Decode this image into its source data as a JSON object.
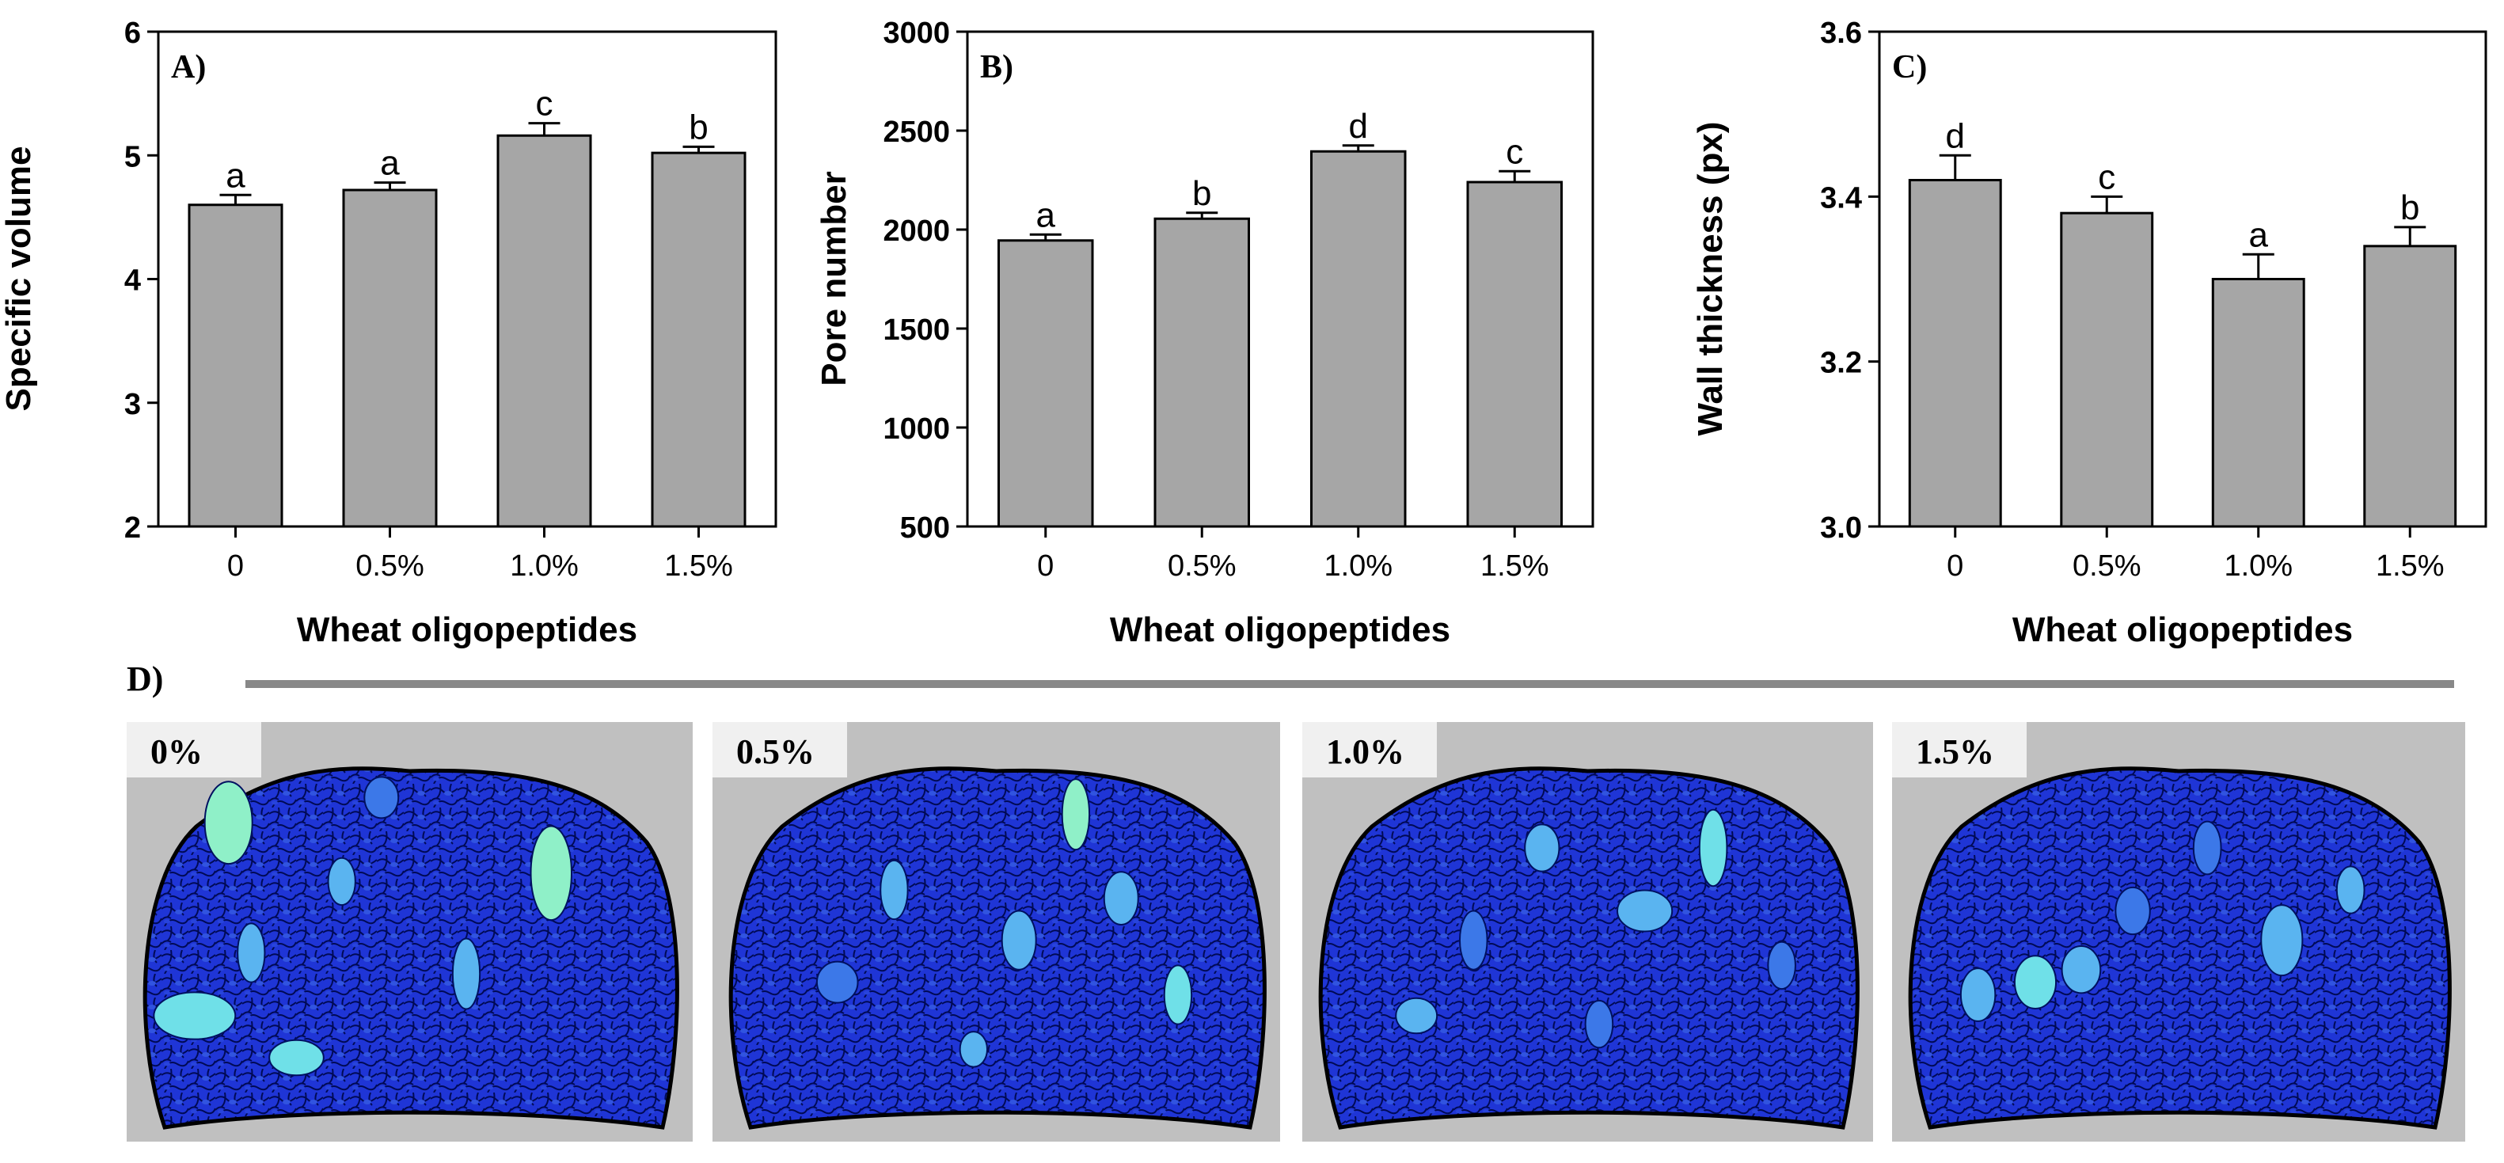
{
  "chart_data": [
    {
      "type": "bar",
      "panel_label": "A)",
      "categories": [
        "0",
        "0.5%",
        "1.0%",
        "1.5%"
      ],
      "values": [
        4.6,
        4.72,
        5.16,
        5.02
      ],
      "errors": [
        0.08,
        0.06,
        0.1,
        0.05
      ],
      "significance": [
        "a",
        "a",
        "c",
        "b"
      ],
      "xlabel": "Wheat oligopeptides",
      "ylabel": "Specific volume",
      "ylim": [
        2,
        6
      ],
      "yticks": [
        "2",
        "3",
        "4",
        "5",
        "6"
      ],
      "bar_color": "#a6a6a6",
      "grid": false
    },
    {
      "type": "bar",
      "panel_label": "B)",
      "categories": [
        "0",
        "0.5%",
        "1.0%",
        "1.5%"
      ],
      "values": [
        1945,
        2055,
        2395,
        2240
      ],
      "errors": [
        30,
        30,
        30,
        55
      ],
      "significance": [
        "a",
        "b",
        "d",
        "c"
      ],
      "xlabel": "Wheat oligopeptides",
      "ylabel": "Pore number",
      "ylim": [
        500,
        3000
      ],
      "yticks": [
        "500",
        "1000",
        "1500",
        "2000",
        "2500",
        "3000"
      ],
      "bar_color": "#a6a6a6",
      "grid": false
    },
    {
      "type": "bar",
      "panel_label": "C)",
      "categories": [
        "0",
        "0.5%",
        "1.0%",
        "1.5%"
      ],
      "values": [
        3.42,
        3.38,
        3.3,
        3.34
      ],
      "errors": [
        0.03,
        0.02,
        0.03,
        0.023
      ],
      "significance": [
        "d",
        "c",
        "a",
        "b"
      ],
      "xlabel": "Wheat oligopeptides",
      "ylabel": "Wall thickness (px)",
      "ylim": [
        3.0,
        3.6
      ],
      "yticks": [
        "3.0",
        "3.2",
        "3.4",
        "3.6"
      ],
      "bar_color": "#a6a6a6",
      "grid": false
    }
  ],
  "panel_d": {
    "label": "D)",
    "images": [
      {
        "label": "0%",
        "desc": "bread-crumb-pore-map-0"
      },
      {
        "label": "0.5%",
        "desc": "bread-crumb-pore-map-0.5"
      },
      {
        "label": "1.0%",
        "desc": "bread-crumb-pore-map-1.0"
      },
      {
        "label": "1.5%",
        "desc": "bread-crumb-pore-map-1.5"
      }
    ],
    "colors": {
      "background": "#c0c0c0",
      "crumb_base": "#1f35d6",
      "pore_mid": "#3c78e8",
      "pore_light": "#5ab4f0",
      "pore_cyan": "#6fe0e8",
      "pore_green": "#8ff0c8",
      "outline": "#000000"
    }
  }
}
